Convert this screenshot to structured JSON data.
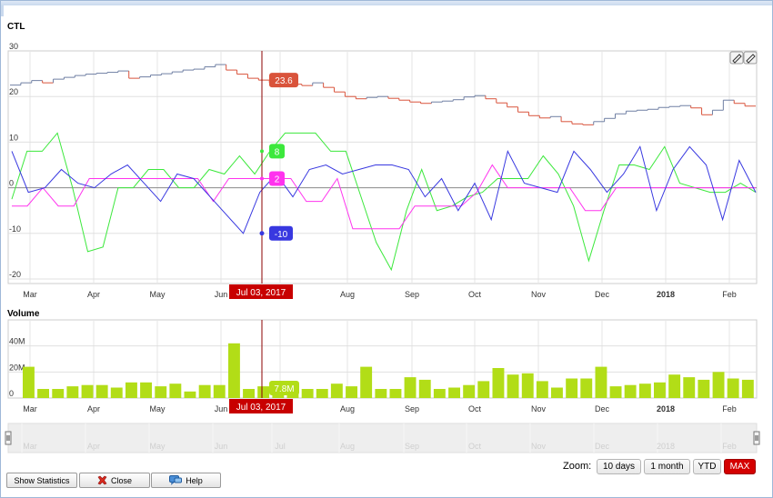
{
  "colors": {
    "ohlc_up": "#6f7fa3",
    "ohlc_down": "#d9533b",
    "green": "#3ce83c",
    "magenta": "#ff33ee",
    "blue": "#3838e0",
    "volume": "#b2dd17",
    "crosshair": "#8b0000",
    "zoom_active": "#d40000"
  },
  "chart_data": [
    {
      "type": "line",
      "title": "CTL",
      "ylim": [
        -21,
        30
      ],
      "yticks": [
        "30",
        "20",
        "10",
        "0",
        "-10",
        "-20"
      ],
      "x_labels": [
        "Mar",
        "Apr",
        "May",
        "Jun",
        "Jul",
        "Aug",
        "Sep",
        "Oct",
        "Nov",
        "Dec",
        "2018",
        "Feb"
      ],
      "x_start": "2017-02-21",
      "x_end": "2018-02-20",
      "price_bars": [
        22.5,
        23,
        23.5,
        23,
        23.8,
        24.2,
        24.6,
        24.9,
        25.1,
        25.3,
        25.6,
        24,
        24.3,
        24.7,
        25,
        25.4,
        25.8,
        26,
        26.5,
        27,
        25.8,
        24.9,
        24,
        23.6,
        23,
        23.3,
        22.7,
        22.4,
        23,
        22,
        21,
        20,
        19.5,
        19.8,
        20,
        19.6,
        19.2,
        18.8,
        18.5,
        18.8,
        19,
        19.3,
        19.9,
        20.2,
        19.5,
        18.6,
        17.7,
        16.6,
        15.8,
        15.3,
        15.6,
        14.5,
        14,
        13.8,
        14.5,
        15.2,
        16.2,
        16.8,
        17,
        17.2,
        17.6,
        17.8,
        18,
        17.5,
        16,
        17,
        19.2,
        18.5,
        17.9
      ],
      "current_price": "23.6",
      "series": [
        {
          "values": [
            -2.5,
            8,
            8,
            12,
            0,
            -14,
            -13,
            0,
            0,
            4,
            4,
            0,
            0,
            4,
            3,
            7,
            3,
            8,
            12,
            12,
            12,
            8,
            8,
            -2,
            -12,
            -18,
            -5,
            4,
            -5,
            -4,
            -2,
            -1,
            2,
            2,
            2,
            7,
            3,
            -4,
            -16,
            -5,
            5,
            5,
            4,
            9,
            1,
            0,
            -1,
            -1,
            1,
            -1
          ]
        },
        {
          "values": [
            -4,
            -4,
            0,
            -4,
            -4,
            2,
            2,
            2,
            2,
            2,
            2,
            2,
            2,
            -3,
            2,
            2,
            2,
            2,
            2,
            -3,
            -3,
            2,
            -9,
            -9,
            -9,
            -9,
            -4,
            -4,
            -4,
            -4,
            -1,
            5,
            0,
            0,
            0,
            0,
            0,
            -5,
            -5,
            0,
            0,
            0,
            0,
            0,
            0,
            0,
            0,
            0,
            0
          ]
        },
        {
          "values": [
            8,
            -1,
            0,
            4,
            1,
            0,
            3,
            5,
            1,
            -3,
            3,
            2,
            -2,
            -6,
            -10,
            -1,
            3,
            -2,
            4,
            5,
            3,
            4,
            5,
            5,
            4,
            -2,
            2,
            -5,
            1,
            -7,
            8,
            1,
            0,
            -1,
            8,
            4,
            -1,
            3,
            9,
            -5,
            4,
            9,
            5,
            -7,
            6,
            -1
          ]
        }
      ],
      "crosshair_date": "Jul 03, 2017",
      "crosshair_values": {
        "green": "8",
        "magenta": "2",
        "blue": "-10"
      }
    },
    {
      "type": "bar",
      "title": "Volume",
      "ylim": [
        0,
        60
      ],
      "yticks": [
        "40M",
        "20M",
        "0"
      ],
      "values": [
        24,
        7,
        7,
        9,
        10,
        10,
        8,
        12,
        12,
        9,
        11,
        5,
        10,
        10,
        42,
        7,
        9,
        9,
        8,
        7,
        7,
        11,
        9,
        24,
        7,
        7,
        16,
        14,
        7,
        8,
        10,
        13,
        23,
        18,
        19,
        13,
        8,
        15,
        15,
        24,
        9,
        10,
        11,
        12,
        18,
        16,
        14,
        20,
        15,
        14
      ],
      "crosshair_value": "7.8M"
    }
  ],
  "navigator": {
    "labels": [
      "Mar",
      "Apr",
      "May",
      "Jun",
      "Jul",
      "Aug",
      "Sep",
      "Oct",
      "Nov",
      "Dec",
      "2018",
      "Feb"
    ]
  },
  "buttons": {
    "show_statistics": "Show Statistics",
    "close": "Close",
    "help": "Help"
  },
  "zoom": {
    "label": "Zoom:",
    "options": [
      "10 days",
      "1 month",
      "YTD",
      "MAX"
    ],
    "active": "MAX"
  }
}
